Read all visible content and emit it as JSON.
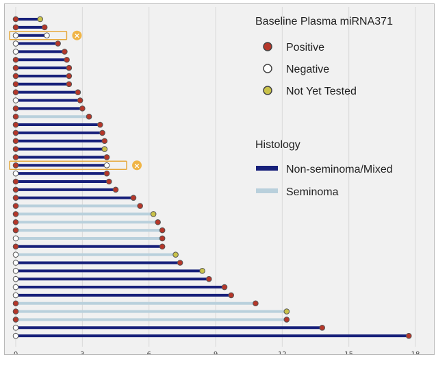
{
  "chart_data": {
    "type": "swimmer",
    "title": "",
    "xlabel": "",
    "ylabel": "",
    "xlim": [
      0,
      18
    ],
    "x_ticks": [
      0,
      3,
      6,
      9,
      12,
      15,
      18
    ],
    "grid": true,
    "legend_marker_title": "Baseline Plasma miRNA371",
    "legend_histology_title": "Histology",
    "marker_legend": [
      {
        "key": "positive",
        "label": "Positive",
        "color": "#b5372a"
      },
      {
        "key": "negative",
        "label": "Negative",
        "color": "#ffffff"
      },
      {
        "key": "nyt",
        "label": "Not Yet Tested",
        "color": "#c9c24a"
      }
    ],
    "histology_legend": [
      {
        "key": "ns",
        "label": "Non-seminoma/Mixed",
        "color": "#17207a"
      },
      {
        "key": "sem",
        "label": "Seminoma",
        "color": "#b9d0dc"
      }
    ],
    "highlight_marker": "×",
    "patients": [
      {
        "hist": "ns",
        "duration": 1.1,
        "start": "positive",
        "end": "nyt"
      },
      {
        "hist": "ns",
        "duration": 1.3,
        "start": "positive",
        "end": "positive"
      },
      {
        "hist": "ns",
        "duration": 1.4,
        "start": "negative",
        "end": "negative",
        "highlight": true
      },
      {
        "hist": "ns",
        "duration": 1.9,
        "start": "negative",
        "end": "positive"
      },
      {
        "hist": "ns",
        "duration": 2.2,
        "start": "negative",
        "end": "positive"
      },
      {
        "hist": "ns",
        "duration": 2.3,
        "start": "positive",
        "end": "positive"
      },
      {
        "hist": "ns",
        "duration": 2.4,
        "start": "positive",
        "end": "positive"
      },
      {
        "hist": "ns",
        "duration": 2.4,
        "start": "positive",
        "end": "positive"
      },
      {
        "hist": "ns",
        "duration": 2.4,
        "start": "positive",
        "end": "positive"
      },
      {
        "hist": "ns",
        "duration": 2.8,
        "start": "positive",
        "end": "positive"
      },
      {
        "hist": "ns",
        "duration": 2.9,
        "start": "negative",
        "end": "positive"
      },
      {
        "hist": "ns",
        "duration": 3.0,
        "start": "positive",
        "end": "positive"
      },
      {
        "hist": "sem",
        "duration": 3.3,
        "start": "positive",
        "end": "positive"
      },
      {
        "hist": "ns",
        "duration": 3.8,
        "start": "positive",
        "end": "positive"
      },
      {
        "hist": "ns",
        "duration": 3.9,
        "start": "positive",
        "end": "positive"
      },
      {
        "hist": "ns",
        "duration": 4.0,
        "start": "positive",
        "end": "positive"
      },
      {
        "hist": "ns",
        "duration": 4.0,
        "start": "positive",
        "end": "nyt"
      },
      {
        "hist": "ns",
        "duration": 4.1,
        "start": "positive",
        "end": "positive"
      },
      {
        "hist": "ns",
        "duration": 4.1,
        "start": "positive",
        "end": "negative",
        "highlight": true
      },
      {
        "hist": "ns",
        "duration": 4.1,
        "start": "negative",
        "end": "positive"
      },
      {
        "hist": "ns",
        "duration": 4.2,
        "start": "positive",
        "end": "positive"
      },
      {
        "hist": "ns",
        "duration": 4.5,
        "start": "positive",
        "end": "positive"
      },
      {
        "hist": "ns",
        "duration": 5.3,
        "start": "positive",
        "end": "positive"
      },
      {
        "hist": "sem",
        "duration": 5.6,
        "start": "positive",
        "end": "positive"
      },
      {
        "hist": "sem",
        "duration": 6.2,
        "start": "positive",
        "end": "nyt"
      },
      {
        "hist": "sem",
        "duration": 6.4,
        "start": "positive",
        "end": "positive"
      },
      {
        "hist": "sem",
        "duration": 6.6,
        "start": "positive",
        "end": "positive"
      },
      {
        "hist": "sem",
        "duration": 6.6,
        "start": "negative",
        "end": "positive"
      },
      {
        "hist": "ns",
        "duration": 6.6,
        "start": "positive",
        "end": "positive"
      },
      {
        "hist": "sem",
        "duration": 7.2,
        "start": "negative",
        "end": "nyt"
      },
      {
        "hist": "ns",
        "duration": 7.4,
        "start": "negative",
        "end": "positive"
      },
      {
        "hist": "ns",
        "duration": 8.4,
        "start": "negative",
        "end": "nyt"
      },
      {
        "hist": "ns",
        "duration": 8.7,
        "start": "negative",
        "end": "positive"
      },
      {
        "hist": "ns",
        "duration": 9.4,
        "start": "negative",
        "end": "positive"
      },
      {
        "hist": "ns",
        "duration": 9.7,
        "start": "negative",
        "end": "positive"
      },
      {
        "hist": "sem",
        "duration": 10.8,
        "start": "positive",
        "end": "positive"
      },
      {
        "hist": "sem",
        "duration": 12.2,
        "start": "positive",
        "end": "nyt"
      },
      {
        "hist": "sem",
        "duration": 12.2,
        "start": "positive",
        "end": "positive"
      },
      {
        "hist": "ns",
        "duration": 13.8,
        "start": "negative",
        "end": "positive"
      },
      {
        "hist": "ns",
        "duration": 17.7,
        "start": "negative",
        "end": "positive"
      }
    ]
  }
}
